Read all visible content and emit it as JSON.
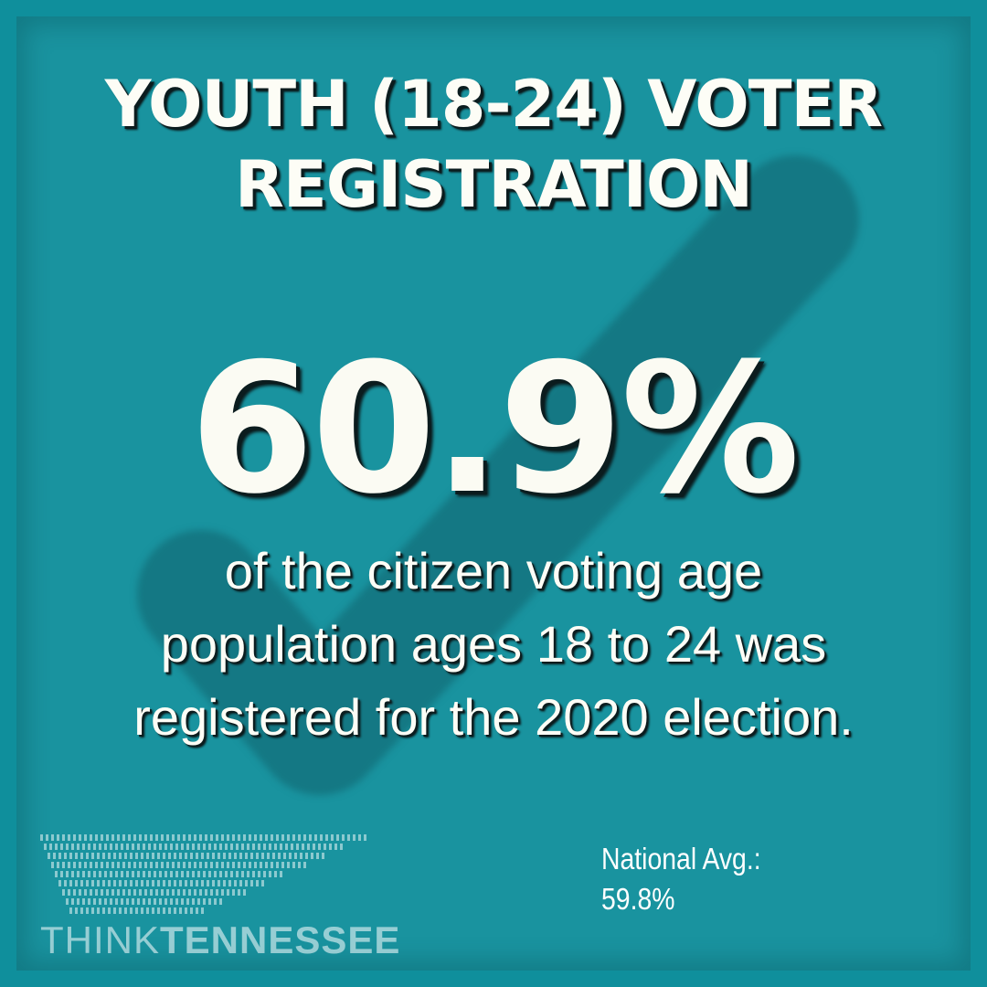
{
  "title": {
    "line1": "YOUTH (18-24) VOTER",
    "line2": "REGISTRATION"
  },
  "headline_stat": "60.9%",
  "description": {
    "line1": "of the citizen voting age",
    "line2": "population ages 18 to 24 was",
    "line3": "registered for the 2020 election."
  },
  "national_average": {
    "label": "National Avg.:",
    "value": "59.8%"
  },
  "logo": {
    "word1": "THINK",
    "word2": "TENNESSEE"
  },
  "colors": {
    "background": "#0f8f9c",
    "checkmark": "#11626d",
    "text": "#fdfdf6"
  },
  "icons": [
    "checkmark-icon",
    "tennessee-map-icon"
  ]
}
